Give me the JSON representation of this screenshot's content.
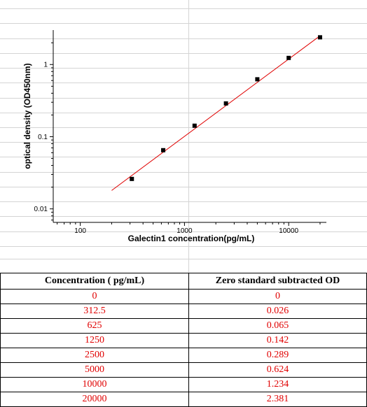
{
  "chart_data": {
    "type": "scatter",
    "title": "",
    "xlabel": "Galectin1  concentration(pg/mL)",
    "ylabel": "optical density (OD450nm)",
    "x_scale": "log",
    "y_scale": "log",
    "xlim": [
      55,
      23000
    ],
    "ylim": [
      0.0065,
      3.0
    ],
    "x_ticks": [
      100,
      1000,
      10000
    ],
    "x_tick_labels": [
      "100",
      "1000",
      "10000"
    ],
    "y_ticks": [
      0.01,
      0.1,
      1
    ],
    "y_tick_labels": [
      "0.01",
      "0.1",
      "1"
    ],
    "grid": false,
    "series": [
      {
        "type": "scatter",
        "x": [
          312.5,
          625,
          1250,
          2500,
          5000,
          10000,
          20000
        ],
        "y": [
          0.026,
          0.065,
          0.142,
          0.289,
          0.624,
          1.234,
          2.381
        ],
        "color": "#000000"
      },
      {
        "type": "line",
        "x": [
          200,
          20000
        ],
        "y": [
          0.018,
          2.5
        ],
        "color": "#e00000"
      }
    ]
  },
  "table": {
    "headers": [
      "Concentration ( pg/mL)",
      "Zero standard subtracted OD"
    ],
    "rows": [
      [
        "0",
        "0"
      ],
      [
        "312.5",
        "0.026"
      ],
      [
        "625",
        "0.065"
      ],
      [
        "1250",
        "0.142"
      ],
      [
        "2500",
        "0.289"
      ],
      [
        "5000",
        "0.624"
      ],
      [
        "10000",
        "1.234"
      ],
      [
        "20000",
        "2.381"
      ]
    ],
    "value_color": "#e00000"
  }
}
